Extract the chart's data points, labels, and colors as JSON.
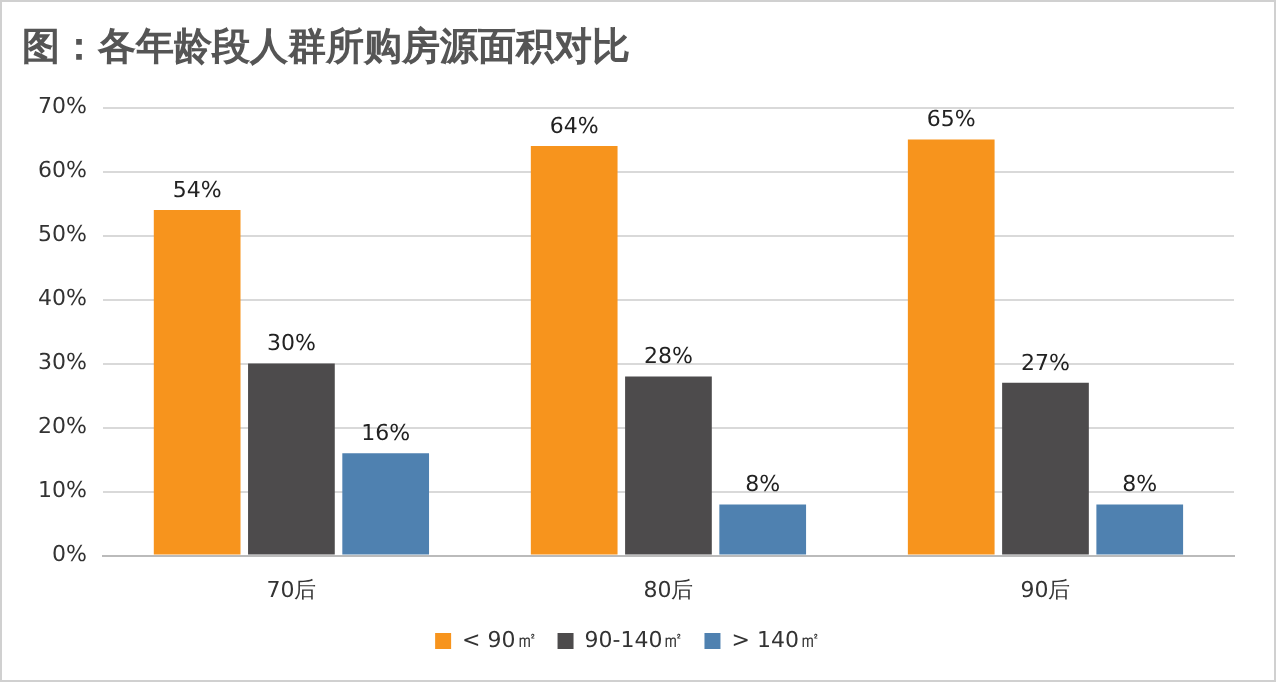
{
  "chart_data": {
    "type": "bar",
    "title": "图：各年龄段人群所购房源面积对比",
    "categories": [
      "70后",
      "80后",
      "90后"
    ],
    "series": [
      {
        "name": "< 90㎡",
        "color": "#f7941d",
        "values": [
          54,
          64,
          65
        ],
        "value_labels": [
          "54%",
          "64%",
          "65%"
        ]
      },
      {
        "name": "90-140㎡",
        "color": "#4d4b4c",
        "values": [
          30,
          28,
          27
        ],
        "value_labels": [
          "30%",
          "28%",
          "27%"
        ]
      },
      {
        "name": "> 140㎡",
        "color": "#4f81b0",
        "values": [
          16,
          8,
          8
        ],
        "value_labels": [
          "16%",
          "8%",
          "8%"
        ]
      }
    ],
    "ylim": [
      0,
      70
    ],
    "yticks": [
      {
        "value": 0,
        "label": "0%"
      },
      {
        "value": 10,
        "label": "10%"
      },
      {
        "value": 20,
        "label": "20%"
      },
      {
        "value": 30,
        "label": "30%"
      },
      {
        "value": 40,
        "label": "40%"
      },
      {
        "value": 50,
        "label": "50%"
      },
      {
        "value": 60,
        "label": "60%"
      },
      {
        "value": 70,
        "label": "70%"
      }
    ],
    "grid": "y",
    "legend": "bottom"
  }
}
